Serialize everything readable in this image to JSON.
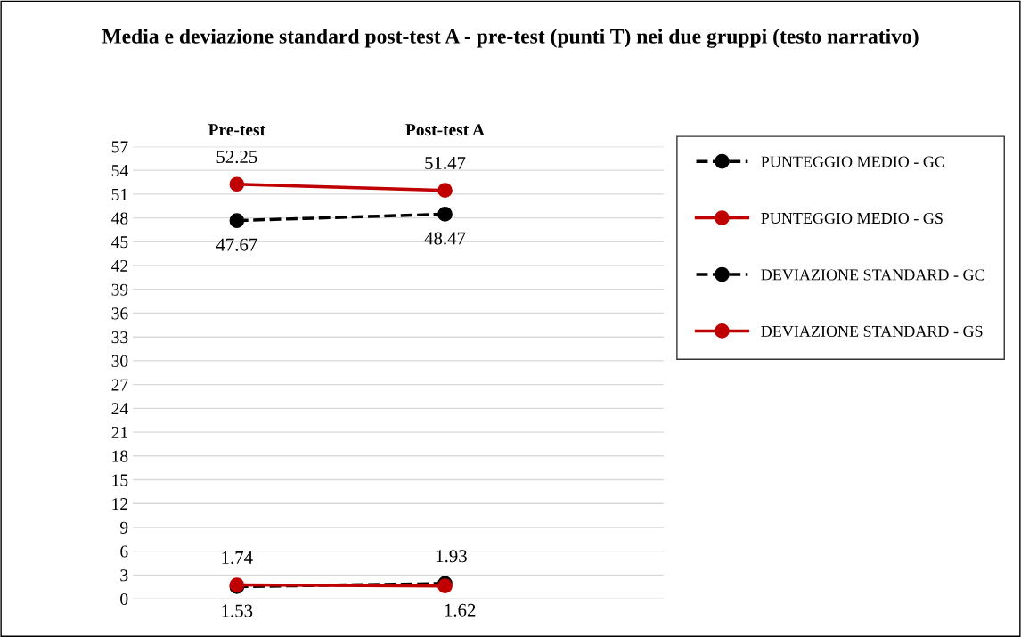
{
  "chart_data": {
    "type": "line",
    "title": "Media e deviazione standard post-test A - pre-test (punti T) nei due gruppi (testo narrativo)",
    "categories": [
      "Pre-test",
      "Post-test A"
    ],
    "series": [
      {
        "name": "PUNTEGGIO MEDIO - GC",
        "color": "#000000",
        "line_style": "dashed",
        "values": [
          47.67,
          48.47
        ]
      },
      {
        "name": "PUNTEGGIO MEDIO - GS",
        "color": "#c00000",
        "line_style": "solid",
        "values": [
          52.25,
          51.47
        ]
      },
      {
        "name": "DEVIAZIONE STANDARD - GC",
        "color": "#000000",
        "line_style": "dashed",
        "values": [
          1.53,
          1.93
        ]
      },
      {
        "name": "DEVIAZIONE STANDARD - GS",
        "color": "#c00000",
        "line_style": "solid",
        "values": [
          1.74,
          1.62
        ]
      }
    ],
    "ylim": [
      0,
      57
    ],
    "yticks": [
      0,
      3,
      6,
      9,
      12,
      15,
      18,
      21,
      24,
      27,
      30,
      33,
      36,
      39,
      42,
      45,
      48,
      51,
      54,
      57
    ],
    "grid": "y",
    "legend": "right",
    "marker": "circle",
    "data_labels": true
  }
}
